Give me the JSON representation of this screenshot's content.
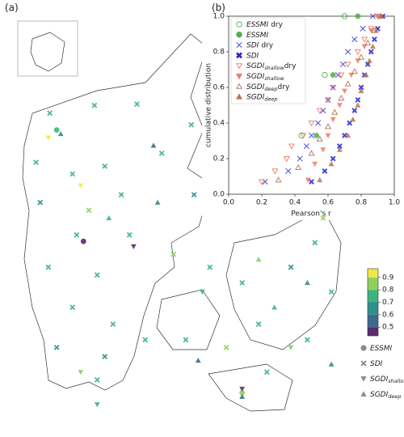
{
  "chart_data": [
    {
      "type": "map",
      "panel_label": "(a)",
      "clim": [
        0.43,
        0.97
      ],
      "cticks": [
        0.5,
        0.6,
        0.7,
        0.8,
        0.9
      ],
      "cmap_colors": [
        "#5c2a6e",
        "#3b6a8c",
        "#2f8f8b",
        "#3fb27f",
        "#8fcf5c",
        "#f3e54c"
      ],
      "legend_color": "#8a8a8a",
      "series": [
        {
          "name": "ESSMI",
          "marker": "o",
          "lon": [
            8.98,
            8.59,
            11.29
          ],
          "lat": [
            56.03,
            56.89,
            54.86
          ],
          "values": [
            0.45,
            0.8,
            0.85
          ]
        },
        {
          "name": "SDI",
          "marker": "X",
          "lon": [
            8.49,
            9.14,
            9.76,
            10.55,
            8.29,
            8.82,
            9.29,
            10.12,
            9.53,
            9.06,
            8.35,
            8.88,
            9.65,
            10.59,
            8.47,
            9.18,
            10.29,
            8.82,
            9.41,
            8.59,
            9.29,
            9.18,
            10.82,
            11.29,
            11.53,
            12.0,
            12.35,
            12.59,
            12.24,
            11.65,
            11.06,
            10.47,
            12.47,
            9.88
          ],
          "lat": [
            57.02,
            57.08,
            57.09,
            56.93,
            56.64,
            56.55,
            56.61,
            56.71,
            56.39,
            56.27,
            56.33,
            56.08,
            56.08,
            56.39,
            55.83,
            55.77,
            55.93,
            55.52,
            55.39,
            55.21,
            55.14,
            54.96,
            55.83,
            55.71,
            55.39,
            55.83,
            56.02,
            55.64,
            55.27,
            55.02,
            55.21,
            55.27,
            56.21,
            55.27
          ],
          "values": [
            0.8,
            0.8,
            0.8,
            0.8,
            0.8,
            0.8,
            0.8,
            0.75,
            0.75,
            0.85,
            0.7,
            0.8,
            0.8,
            0.7,
            0.8,
            0.75,
            0.85,
            0.75,
            0.8,
            0.7,
            0.7,
            0.8,
            0.8,
            0.75,
            0.8,
            0.7,
            0.8,
            0.8,
            0.8,
            0.75,
            0.85,
            0.8,
            0.85,
            0.8
          ]
        },
        {
          "name": "SGDI",
          "sub": "shallow",
          "marker": "v",
          "lon": [
            8.94,
            9.71,
            8.94,
            9.18,
            10.71,
            11.29,
            12.0,
            8.47
          ],
          "lat": [
            56.46,
            55.99,
            55.02,
            54.77,
            55.64,
            54.89,
            55.21,
            56.83
          ],
          "values": [
            0.95,
            0.5,
            0.9,
            0.8,
            0.75,
            0.45,
            0.85,
            0.95
          ]
        },
        {
          "name": "SGDI",
          "sub": "deep",
          "marker": "^",
          "lon": [
            8.65,
            10.0,
            9.35,
            10.06,
            11.53,
            11.76,
            12.24,
            12.59,
            10.65,
            11.29
          ],
          "lat": [
            56.86,
            56.77,
            56.21,
            56.33,
            55.89,
            55.52,
            55.71,
            55.08,
            55.11,
            54.83
          ],
          "values": [
            0.7,
            0.6,
            0.8,
            0.65,
            0.85,
            0.75,
            0.7,
            0.65,
            0.55,
            0.55
          ]
        }
      ]
    },
    {
      "type": "ecdf",
      "panel_label": "(b)",
      "xlabel": "Pearson's r",
      "ylabel": "cumulative distribution",
      "xlim": [
        0,
        1
      ],
      "ylim": [
        0,
        1
      ],
      "xticks": [
        {
          "value": 0,
          "label": "0.0"
        },
        {
          "value": 0.2,
          "label": "0.2"
        },
        {
          "value": 0.4,
          "label": "0.4"
        },
        {
          "value": 0.6,
          "label": "0.6"
        },
        {
          "value": 0.8,
          "label": "0.8"
        },
        {
          "value": 1,
          "label": "1.0"
        }
      ],
      "yticks": [
        {
          "value": 0,
          "label": "0.0"
        },
        {
          "value": 0.2,
          "label": "0.2"
        },
        {
          "value": 0.4,
          "label": "0.4"
        },
        {
          "value": 0.6,
          "label": "0.6"
        },
        {
          "value": 0.8,
          "label": "0.8"
        },
        {
          "value": 1,
          "label": "1.0"
        }
      ],
      "series": [
        {
          "name": "ESSMI",
          "suffix": "dry",
          "marker": "o",
          "filled": false,
          "color": "#4cae4c",
          "x": [
            0.44,
            0.58,
            0.7
          ],
          "values": [
            0.33,
            0.67,
            1.0
          ]
        },
        {
          "name": "ESSMI",
          "marker": "o",
          "filled": true,
          "color": "#4cae4c",
          "x": [
            0.53,
            0.63,
            0.78
          ],
          "values": [
            0.33,
            0.67,
            1.0
          ]
        },
        {
          "name": "SDI",
          "suffix": "dry",
          "marker": "x",
          "filled": false,
          "color": "#3a3ae0",
          "x": [
            0.22,
            0.36,
            0.43,
            0.47,
            0.5,
            0.54,
            0.57,
            0.6,
            0.63,
            0.66,
            0.69,
            0.72,
            0.76,
            0.81,
            0.87
          ],
          "values": [
            0.07,
            0.13,
            0.2,
            0.27,
            0.33,
            0.4,
            0.47,
            0.53,
            0.6,
            0.67,
            0.73,
            0.8,
            0.87,
            0.93,
            1.0
          ]
        },
        {
          "name": "SDI",
          "marker": "X",
          "filled": true,
          "color": "#2424d0",
          "x": [
            0.5,
            0.58,
            0.63,
            0.67,
            0.7,
            0.73,
            0.76,
            0.78,
            0.8,
            0.82,
            0.84,
            0.86,
            0.88,
            0.9,
            0.93
          ],
          "values": [
            0.07,
            0.13,
            0.2,
            0.27,
            0.33,
            0.4,
            0.47,
            0.53,
            0.6,
            0.67,
            0.73,
            0.8,
            0.87,
            0.93,
            1.0
          ]
        },
        {
          "name": "SGDI",
          "sub": "shallow",
          "suffix": "dry",
          "marker": "v",
          "filled": false,
          "color": "#f07a6a",
          "x": [
            0.2,
            0.28,
            0.35,
            0.38,
            0.45,
            0.5,
            0.55,
            0.6,
            0.63,
            0.68,
            0.72,
            0.78,
            0.82,
            0.86,
            0.9
          ],
          "values": [
            0.07,
            0.13,
            0.2,
            0.27,
            0.33,
            0.4,
            0.47,
            0.53,
            0.6,
            0.67,
            0.73,
            0.8,
            0.87,
            0.93,
            1.0
          ]
        },
        {
          "name": "SGDI",
          "sub": "shallow",
          "marker": "v",
          "filled": true,
          "color": "#f07a6a",
          "x": [
            0.48,
            0.52,
            0.57,
            0.6,
            0.63,
            0.67,
            0.7,
            0.74,
            0.78,
            0.82,
            0.86,
            0.9
          ],
          "values": [
            0.08,
            0.17,
            0.25,
            0.33,
            0.42,
            0.5,
            0.58,
            0.67,
            0.75,
            0.83,
            0.92,
            1.0
          ]
        },
        {
          "name": "SGDI",
          "sub": "deep",
          "suffix": "dry",
          "marker": "^",
          "filled": false,
          "color": "#b5745a",
          "x": [
            0.3,
            0.42,
            0.5,
            0.55,
            0.6,
            0.64,
            0.68,
            0.72,
            0.76,
            0.8,
            0.84,
            0.88,
            0.92
          ],
          "values": [
            0.08,
            0.15,
            0.23,
            0.31,
            0.38,
            0.46,
            0.54,
            0.62,
            0.69,
            0.77,
            0.85,
            0.92,
            1.0
          ]
        },
        {
          "name": "SGDI",
          "sub": "deep",
          "marker": "^",
          "filled": true,
          "color": "#b5745a",
          "x": [
            0.55,
            0.62,
            0.67,
            0.72,
            0.75,
            0.78,
            0.8,
            0.83,
            0.85,
            0.87,
            0.89,
            0.92
          ],
          "values": [
            0.08,
            0.17,
            0.25,
            0.33,
            0.42,
            0.5,
            0.58,
            0.67,
            0.75,
            0.83,
            0.92,
            1.0
          ]
        }
      ]
    }
  ]
}
